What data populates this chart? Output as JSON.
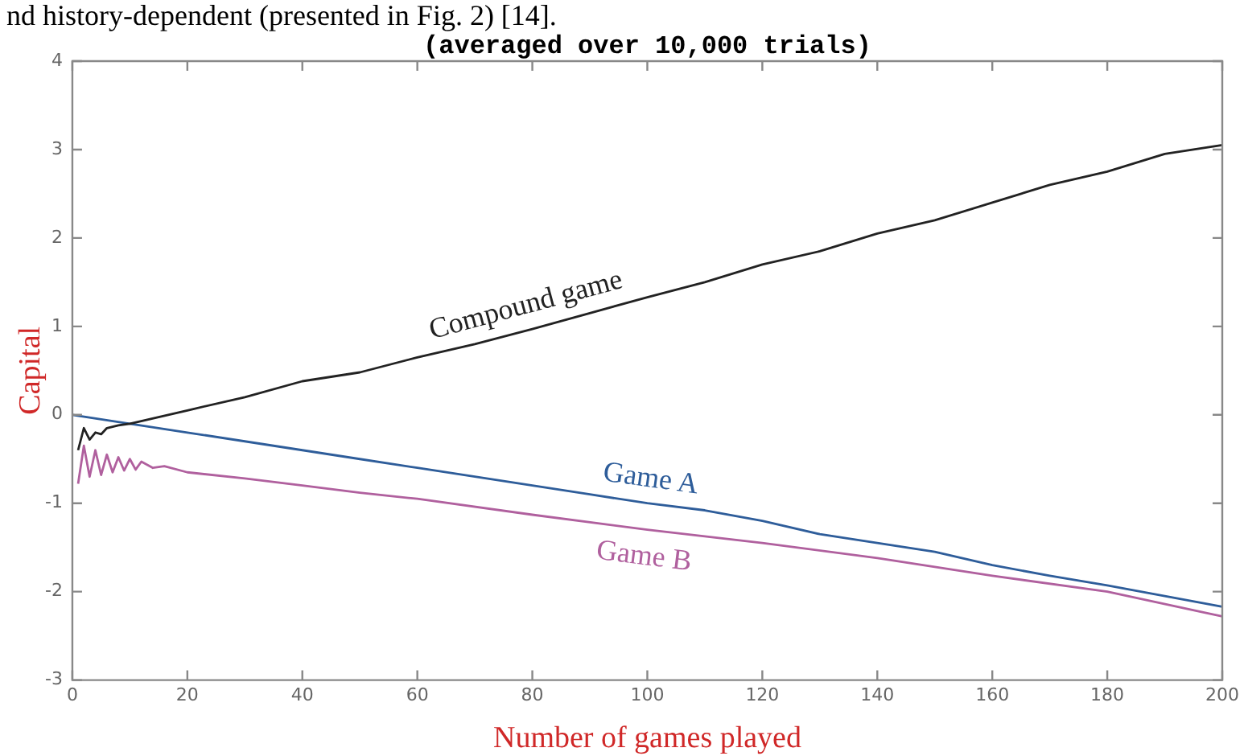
{
  "chart_data": {
    "type": "line",
    "title": "(averaged over 10,000 trials)",
    "xlabel": "Number of games played",
    "ylabel": "Capital",
    "annotations": [
      "nd history-dependent (presented in Fig. 2) [14]."
    ],
    "xlim": [
      0,
      200
    ],
    "xticks": [
      0,
      20,
      40,
      60,
      80,
      100,
      120,
      140,
      160,
      180,
      200
    ],
    "ylim": [
      -3,
      4
    ],
    "yticks": [
      -3,
      -2,
      -1,
      0,
      1,
      2,
      3,
      4
    ],
    "grid": false,
    "marker": "none",
    "line_style": "solid",
    "series": [
      {
        "name": "Compound game",
        "color": "#222222",
        "x": [
          1,
          2,
          3,
          4,
          5,
          6,
          8,
          10,
          20,
          30,
          40,
          50,
          60,
          70,
          80,
          90,
          100,
          110,
          120,
          130,
          140,
          150,
          160,
          170,
          180,
          190,
          200
        ],
        "values": [
          -0.4,
          -0.15,
          -0.28,
          -0.2,
          -0.22,
          -0.15,
          -0.12,
          -0.1,
          0.05,
          0.2,
          0.38,
          0.48,
          0.65,
          0.8,
          0.97,
          1.15,
          1.33,
          1.5,
          1.7,
          1.85,
          2.05,
          2.2,
          2.4,
          2.6,
          2.75,
          2.95,
          3.05
        ]
      },
      {
        "name": "Game A",
        "color": "#2e5d9a",
        "x": [
          0,
          10,
          20,
          30,
          40,
          50,
          60,
          70,
          80,
          90,
          100,
          110,
          120,
          130,
          140,
          150,
          160,
          170,
          180,
          190,
          200
        ],
        "values": [
          0,
          -0.1,
          -0.2,
          -0.3,
          -0.4,
          -0.5,
          -0.6,
          -0.7,
          -0.8,
          -0.9,
          -1.0,
          -1.08,
          -1.2,
          -1.35,
          -1.45,
          -1.55,
          -1.7,
          -1.82,
          -1.93,
          -2.05,
          -2.17
        ]
      },
      {
        "name": "Game B",
        "color": "#b0609e",
        "x": [
          1,
          2,
          3,
          4,
          5,
          6,
          7,
          8,
          9,
          10,
          11,
          12,
          14,
          16,
          20,
          30,
          40,
          50,
          60,
          80,
          100,
          120,
          140,
          160,
          180,
          200
        ],
        "values": [
          -0.78,
          -0.35,
          -0.7,
          -0.4,
          -0.68,
          -0.45,
          -0.65,
          -0.48,
          -0.63,
          -0.5,
          -0.62,
          -0.53,
          -0.6,
          -0.58,
          -0.65,
          -0.72,
          -0.8,
          -0.88,
          -0.95,
          -1.13,
          -1.3,
          -1.45,
          -1.62,
          -1.82,
          -2.0,
          -2.28
        ]
      }
    ]
  }
}
